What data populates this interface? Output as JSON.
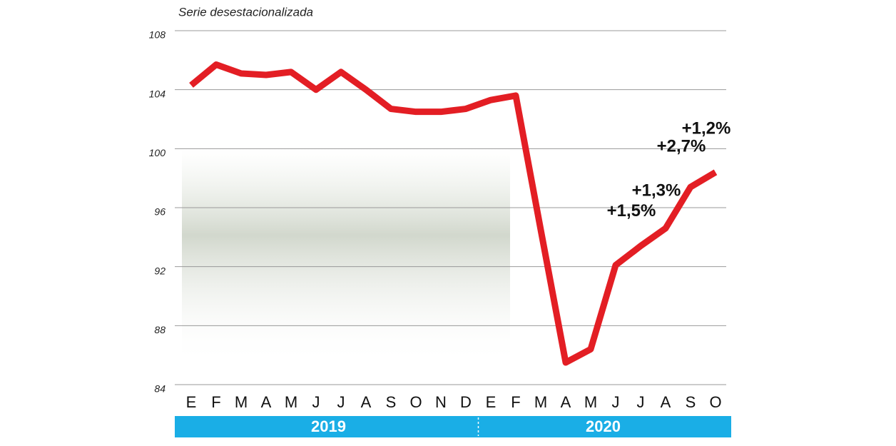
{
  "chart_data": {
    "type": "line",
    "subtitle": "Serie desestacionalizada",
    "categories": [
      "E",
      "F",
      "M",
      "A",
      "M",
      "J",
      "J",
      "A",
      "S",
      "O",
      "N",
      "D",
      "E",
      "F",
      "M",
      "A",
      "M",
      "J",
      "J",
      "A",
      "S",
      "O"
    ],
    "series": [
      {
        "color": "#e31e24",
        "values": [
          104.3,
          105.7,
          105.1,
          105.0,
          105.2,
          104.0,
          105.2,
          104.0,
          102.7,
          102.5,
          102.5,
          102.7,
          103.3,
          103.6,
          94.5,
          85.5,
          86.4,
          92.1,
          93.4,
          94.6,
          97.4,
          98.4
        ]
      }
    ],
    "years": [
      "2019",
      "2020"
    ],
    "annotations": [
      "+1,5%",
      "+1,3%",
      "+2,7%",
      "+1,2%"
    ],
    "ylim": [
      84,
      108
    ],
    "yticks": [
      84,
      88,
      92,
      96,
      100,
      104,
      108
    ],
    "grid": true
  }
}
